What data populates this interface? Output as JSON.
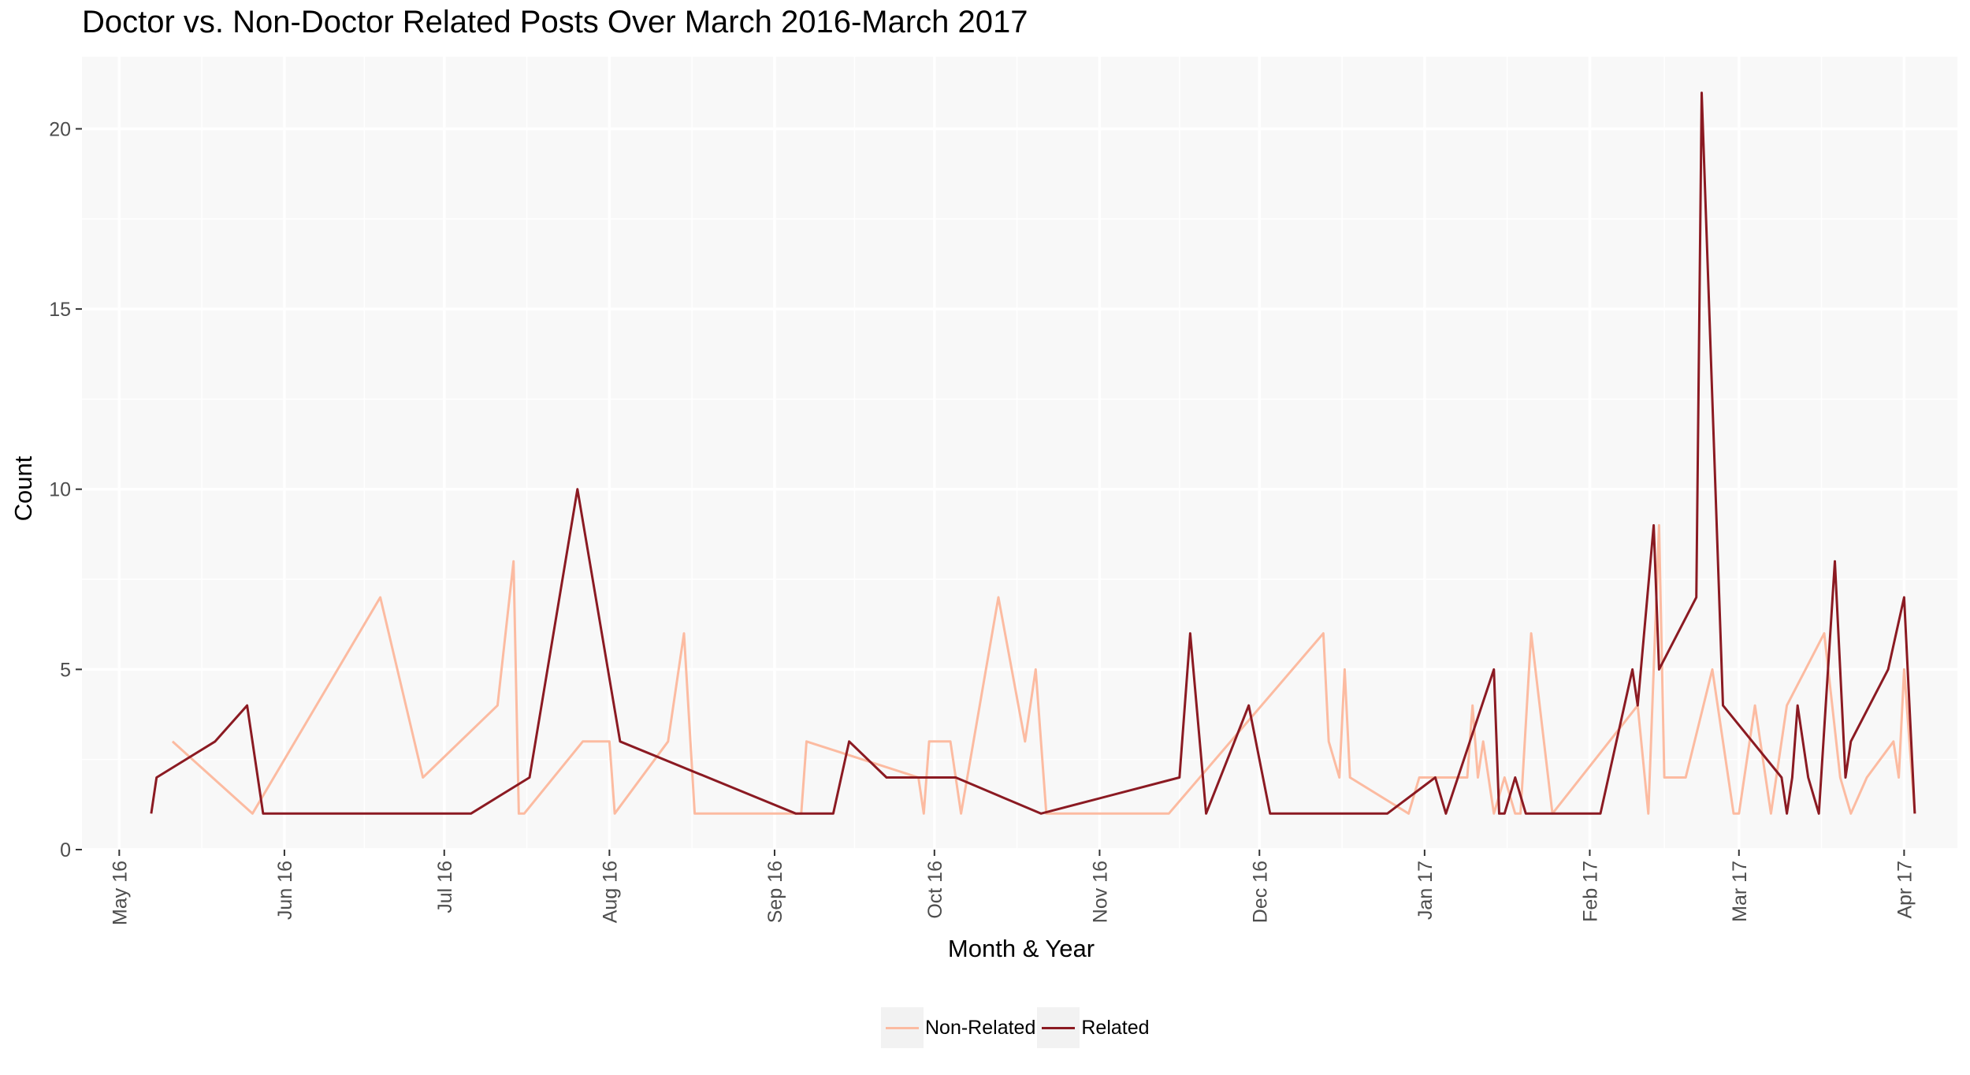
{
  "chart_data": {
    "type": "line",
    "title": "Doctor vs. Non-Doctor Related Posts Over March 2016-March 2017",
    "xlabel": "Month & Year",
    "ylabel": "Count",
    "x_axis": {
      "scale": "date",
      "range": [
        "2016-04-24",
        "2017-04-11"
      ],
      "ticks": [
        {
          "date": "2016-05-01",
          "label": "May 16"
        },
        {
          "date": "2016-06-01",
          "label": "Jun 16"
        },
        {
          "date": "2016-07-01",
          "label": "Jul 16"
        },
        {
          "date": "2016-08-01",
          "label": "Aug 16"
        },
        {
          "date": "2016-09-01",
          "label": "Sep 16"
        },
        {
          "date": "2016-10-01",
          "label": "Oct 16"
        },
        {
          "date": "2016-11-01",
          "label": "Nov 16"
        },
        {
          "date": "2016-12-01",
          "label": "Dec 16"
        },
        {
          "date": "2017-01-01",
          "label": "Jan 17"
        },
        {
          "date": "2017-02-01",
          "label": "Feb 17"
        },
        {
          "date": "2017-03-01",
          "label": "Mar 17"
        },
        {
          "date": "2017-04-01",
          "label": "Apr 17"
        }
      ]
    },
    "y_axis": {
      "range": [
        0,
        22
      ],
      "ticks": [
        0,
        5,
        10,
        15,
        20
      ]
    },
    "grid": true,
    "legend_position": "bottom",
    "series": [
      {
        "name": "Non-Related",
        "color": "#fcbba1",
        "points": [
          [
            "2016-05-11",
            3
          ],
          [
            "2016-05-26",
            1
          ],
          [
            "2016-06-19",
            7
          ],
          [
            "2016-06-27",
            2
          ],
          [
            "2016-07-11",
            4
          ],
          [
            "2016-07-14",
            8
          ],
          [
            "2016-07-15",
            1
          ],
          [
            "2016-07-16",
            1
          ],
          [
            "2016-07-27",
            3
          ],
          [
            "2016-08-01",
            3
          ],
          [
            "2016-08-02",
            1
          ],
          [
            "2016-08-12",
            3
          ],
          [
            "2016-08-15",
            6
          ],
          [
            "2016-08-17",
            1
          ],
          [
            "2016-09-05",
            1
          ],
          [
            "2016-09-06",
            1
          ],
          [
            "2016-09-07",
            3
          ],
          [
            "2016-09-28",
            2
          ],
          [
            "2016-09-29",
            1
          ],
          [
            "2016-09-30",
            3
          ],
          [
            "2016-10-04",
            3
          ],
          [
            "2016-10-06",
            1
          ],
          [
            "2016-10-13",
            7
          ],
          [
            "2016-10-18",
            3
          ],
          [
            "2016-10-20",
            5
          ],
          [
            "2016-10-22",
            1
          ],
          [
            "2016-11-14",
            1
          ],
          [
            "2016-12-13",
            6
          ],
          [
            "2016-12-14",
            3
          ],
          [
            "2016-12-16",
            2
          ],
          [
            "2016-12-17",
            5
          ],
          [
            "2016-12-18",
            2
          ],
          [
            "2016-12-29",
            1
          ],
          [
            "2016-12-31",
            2
          ],
          [
            "2017-01-09",
            2
          ],
          [
            "2017-01-10",
            4
          ],
          [
            "2017-01-11",
            2
          ],
          [
            "2017-01-12",
            3
          ],
          [
            "2017-01-14",
            1
          ],
          [
            "2017-01-16",
            2
          ],
          [
            "2017-01-18",
            1
          ],
          [
            "2017-01-19",
            1
          ],
          [
            "2017-01-21",
            6
          ],
          [
            "2017-01-25",
            1
          ],
          [
            "2017-02-10",
            4
          ],
          [
            "2017-02-12",
            1
          ],
          [
            "2017-02-14",
            9
          ],
          [
            "2017-02-15",
            2
          ],
          [
            "2017-02-19",
            2
          ],
          [
            "2017-02-24",
            5
          ],
          [
            "2017-02-28",
            1
          ],
          [
            "2017-03-01",
            1
          ],
          [
            "2017-03-04",
            4
          ],
          [
            "2017-03-07",
            1
          ],
          [
            "2017-03-10",
            4
          ],
          [
            "2017-03-17",
            6
          ],
          [
            "2017-03-20",
            2
          ],
          [
            "2017-03-22",
            1
          ],
          [
            "2017-03-25",
            2
          ],
          [
            "2017-03-30",
            3
          ],
          [
            "2017-03-31",
            2
          ],
          [
            "2017-04-01",
            5
          ],
          [
            "2017-04-03",
            1
          ]
        ]
      },
      {
        "name": "Related",
        "color": "#8b1a22",
        "points": [
          [
            "2016-05-07",
            1
          ],
          [
            "2016-05-08",
            2
          ],
          [
            "2016-05-19",
            3
          ],
          [
            "2016-05-25",
            4
          ],
          [
            "2016-05-28",
            1
          ],
          [
            "2016-07-06",
            1
          ],
          [
            "2016-07-17",
            2
          ],
          [
            "2016-07-26",
            10
          ],
          [
            "2016-08-03",
            3
          ],
          [
            "2016-09-05",
            1
          ],
          [
            "2016-09-12",
            1
          ],
          [
            "2016-09-15",
            3
          ],
          [
            "2016-09-22",
            2
          ],
          [
            "2016-10-05",
            2
          ],
          [
            "2016-10-21",
            1
          ],
          [
            "2016-11-16",
            2
          ],
          [
            "2016-11-18",
            6
          ],
          [
            "2016-11-21",
            1
          ],
          [
            "2016-11-29",
            4
          ],
          [
            "2016-12-03",
            1
          ],
          [
            "2016-12-25",
            1
          ],
          [
            "2017-01-03",
            2
          ],
          [
            "2017-01-05",
            1
          ],
          [
            "2017-01-14",
            5
          ],
          [
            "2017-01-15",
            1
          ],
          [
            "2017-01-16",
            1
          ],
          [
            "2017-01-18",
            2
          ],
          [
            "2017-01-20",
            1
          ],
          [
            "2017-02-03",
            1
          ],
          [
            "2017-02-09",
            5
          ],
          [
            "2017-02-10",
            4
          ],
          [
            "2017-02-13",
            9
          ],
          [
            "2017-02-14",
            5
          ],
          [
            "2017-02-21",
            7
          ],
          [
            "2017-02-22",
            21
          ],
          [
            "2017-02-26",
            4
          ],
          [
            "2017-03-09",
            2
          ],
          [
            "2017-03-10",
            1
          ],
          [
            "2017-03-11",
            2
          ],
          [
            "2017-03-12",
            4
          ],
          [
            "2017-03-14",
            2
          ],
          [
            "2017-03-16",
            1
          ],
          [
            "2017-03-19",
            8
          ],
          [
            "2017-03-21",
            2
          ],
          [
            "2017-03-22",
            3
          ],
          [
            "2017-03-29",
            5
          ],
          [
            "2017-04-01",
            7
          ],
          [
            "2017-04-03",
            1
          ]
        ]
      }
    ]
  }
}
